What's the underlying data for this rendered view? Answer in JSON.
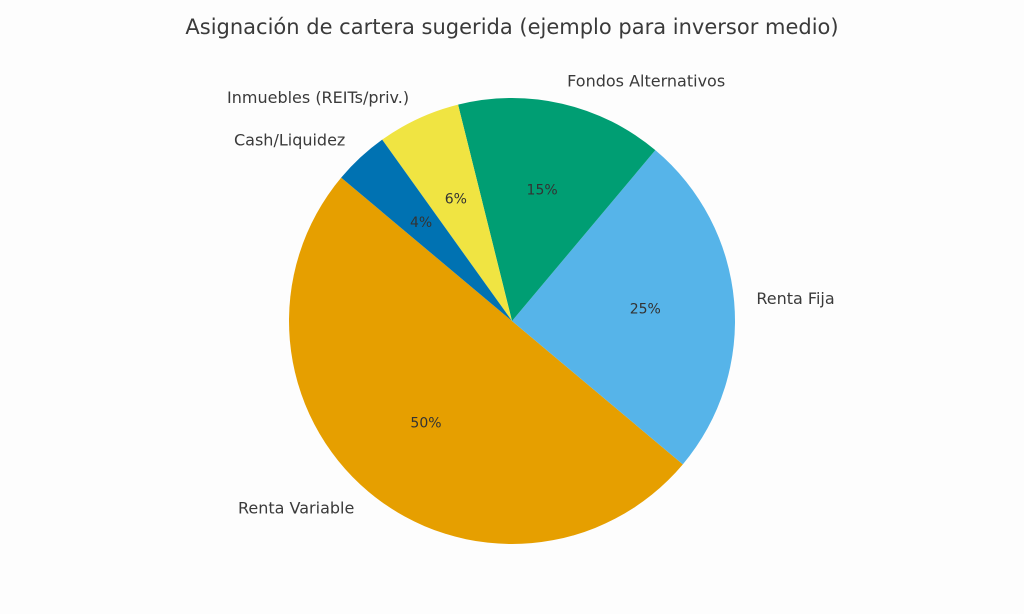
{
  "chart_data": {
    "type": "pie",
    "title": "Asignación de cartera sugerida (ejemplo para inversor medio)",
    "slices": [
      {
        "label": "Renta Variable",
        "value": 50,
        "pct_label": "50%",
        "color": "#E69F00"
      },
      {
        "label": "Renta Fija",
        "value": 25,
        "pct_label": "25%",
        "color": "#56B4E9"
      },
      {
        "label": "Fondos Alternativos",
        "value": 15,
        "pct_label": "15%",
        "color": "#009E73"
      },
      {
        "label": "Inmuebles (REITs/priv.)",
        "value": 6,
        "pct_label": "6%",
        "color": "#F0E442"
      },
      {
        "label": "Cash/Liquidez",
        "value": 4,
        "pct_label": "4%",
        "color": "#0072B2"
      }
    ],
    "start_angle_deg": 140,
    "direction": "counterclockwise",
    "legend": "none"
  }
}
